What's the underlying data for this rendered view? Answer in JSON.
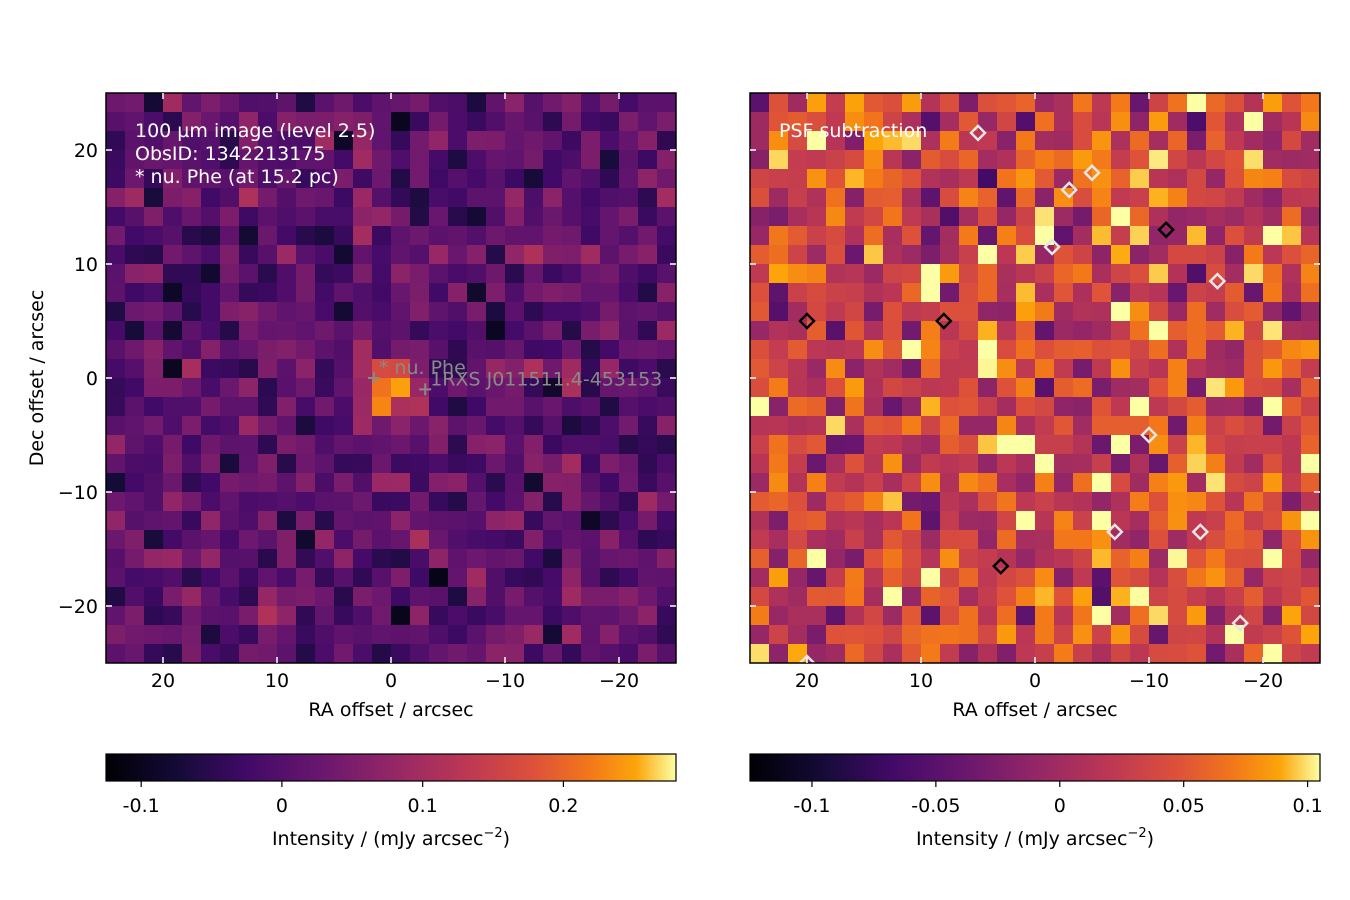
{
  "chart_data": [
    {
      "type": "heatmap",
      "panel": "left",
      "xlabel": "RA offset / arcsec",
      "ylabel": "Dec offset / arcsec",
      "xlim": [
        25,
        -25
      ],
      "ylim": [
        -25,
        25
      ],
      "xticks": [
        20,
        10,
        0,
        -10,
        -20
      ],
      "yticks": [
        20,
        10,
        0,
        -10,
        -20
      ],
      "xtick_labels": [
        "20",
        "10",
        "0",
        "−10",
        "−20"
      ],
      "ytick_labels": [
        "20",
        "10",
        "0",
        "−10",
        "−20"
      ],
      "annotation_lines": [
        "100 µm image (level 2.5)",
        "ObsID: 1342213175",
        "* nu. Phe (at 15.2 pc)"
      ],
      "markers": [
        {
          "label": "* nu. Phe",
          "ra": 1.5,
          "dec": 0
        },
        {
          "label": "1RXS J011511.4-453153",
          "ra": -3.0,
          "dec": -1.0
        }
      ],
      "colormap": "inferno",
      "color_range": [
        -0.125,
        0.28
      ],
      "grid": {
        "rows": 30,
        "cols": 30
      },
      "peak": {
        "ra": 0.5,
        "dec": -1.0,
        "value": 0.25
      },
      "colorbar": {
        "label": "Intensity / (mJy arcsec",
        "label_exp": "−2",
        "label_end": ")",
        "range": [
          -0.125,
          0.28
        ],
        "ticks": [
          -0.1,
          0,
          0.1,
          0.2
        ],
        "tick_labels": [
          "-0.1",
          "0",
          "0.1",
          "0.2"
        ]
      }
    },
    {
      "type": "heatmap",
      "panel": "right",
      "xlabel": "RA offset / arcsec",
      "xlim": [
        25,
        -25
      ],
      "ylim": [
        -25,
        25
      ],
      "xticks": [
        20,
        10,
        0,
        -10,
        -20
      ],
      "xtick_labels": [
        "20",
        "10",
        "0",
        "−10",
        "−20"
      ],
      "annotation_lines": [
        "PSF subtraction"
      ],
      "colormap": "inferno",
      "color_range": [
        -0.125,
        0.105
      ],
      "grid": {
        "rows": 30,
        "cols": 30
      },
      "contours": [
        {
          "level": "positive",
          "color": "#000000",
          "points": [
            [
              20,
              5
            ],
            [
              8,
              5
            ],
            [
              -11.5,
              13
            ],
            [
              3,
              -16.5
            ]
          ]
        },
        {
          "level": "negative",
          "color": "#e6e6e6",
          "points": [
            [
              5,
              21.5
            ],
            [
              -5,
              18
            ],
            [
              -3,
              16.5
            ],
            [
              -1.5,
              11.5
            ],
            [
              -16,
              8.5
            ],
            [
              -10,
              -5
            ],
            [
              -7,
              -13.5
            ],
            [
              -14.5,
              -13.5
            ],
            [
              -18,
              -21.5
            ],
            [
              20,
              -25
            ]
          ]
        }
      ],
      "colorbar": {
        "label": "Intensity / (mJy arcsec",
        "label_exp": "−2",
        "label_end": ")",
        "range": [
          -0.125,
          0.105
        ],
        "ticks": [
          -0.1,
          -0.05,
          0,
          0.05,
          0.1
        ],
        "tick_labels": [
          "-0.1",
          "-0.05",
          "0",
          "0.05",
          "0.1"
        ]
      }
    }
  ]
}
